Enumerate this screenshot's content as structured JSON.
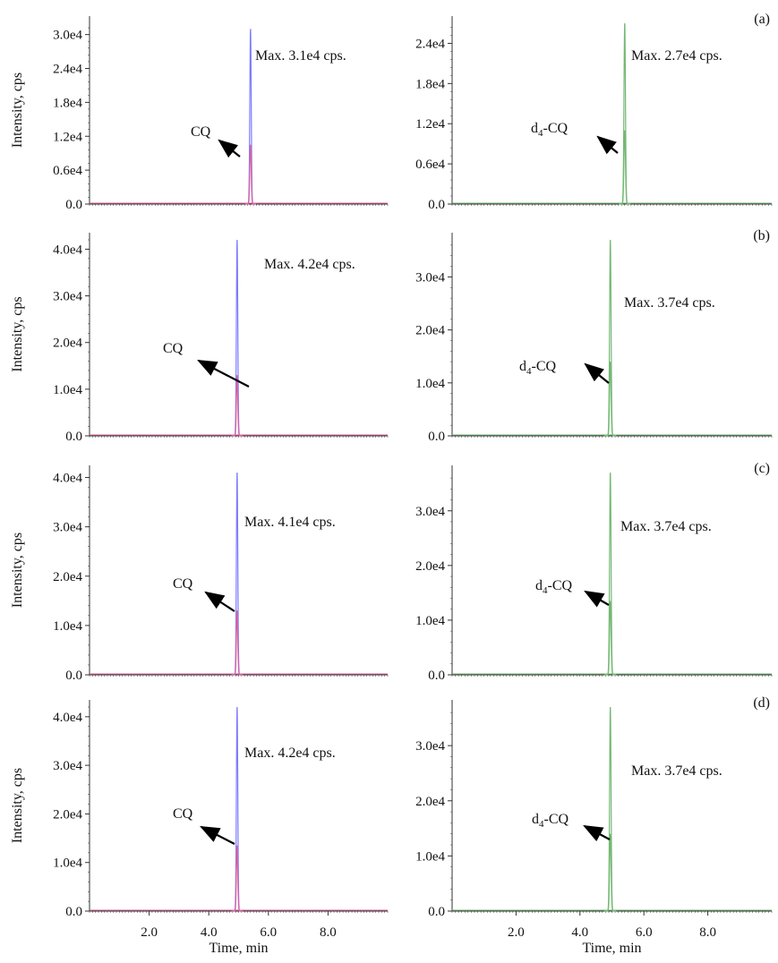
{
  "colors": {
    "blue": "#7b7bff",
    "pink": "#e0609a",
    "green": "#74b874",
    "axis": "#333333",
    "arrow": "#000000"
  },
  "chart_data": [
    {
      "type": "line",
      "panel_label": "",
      "ylabel": "Intensity, cps",
      "xlabel": "",
      "xlim": [
        0,
        10
      ],
      "ylim": [
        0,
        32000
      ],
      "yticks": [
        {
          "v": 0,
          "t": "0.0"
        },
        {
          "v": 6000,
          "t": "0.6e4"
        },
        {
          "v": 12000,
          "t": "1.2e4"
        },
        {
          "v": 18000,
          "t": "1.8e4"
        },
        {
          "v": 24000,
          "t": "2.4e4"
        },
        {
          "v": 30000,
          "t": "3.0e4"
        }
      ],
      "xticks": [],
      "series": [
        {
          "color": "blue",
          "peak_x": 5.4,
          "peak_y": 31000,
          "width": 0.06
        },
        {
          "color": "pink",
          "peak_x": 5.4,
          "peak_y": 10500,
          "width": 0.06
        }
      ],
      "annotation": {
        "text": "Max. 3.1e4 cps."
      },
      "compound": {
        "text": "CQ",
        "sub": ""
      }
    },
    {
      "type": "line",
      "panel_label": "(a)",
      "ylabel": "",
      "xlabel": "",
      "xlim": [
        0,
        10
      ],
      "ylim": [
        0,
        27000
      ],
      "yticks": [
        {
          "v": 0,
          "t": "0.0"
        },
        {
          "v": 6000,
          "t": "0.6e4"
        },
        {
          "v": 12000,
          "t": "1.2e4"
        },
        {
          "v": 18000,
          "t": "1.8e4"
        },
        {
          "v": 24000,
          "t": "2.4e4"
        }
      ],
      "xticks": [],
      "series": [
        {
          "color": "green",
          "peak_x": 5.4,
          "peak_y": 27000,
          "width": 0.06
        },
        {
          "color": "green",
          "peak_x": 5.4,
          "peak_y": 11000,
          "width": 0.06
        }
      ],
      "annotation": {
        "text": "Max. 2.7e4 cps."
      },
      "compound": {
        "text": "d",
        "sub": "4",
        "suffix": "-CQ"
      }
    },
    {
      "type": "line",
      "panel_label": "",
      "ylabel": "Intensity, cps",
      "xlabel": "",
      "xlim": [
        0,
        10
      ],
      "ylim": [
        0,
        42000
      ],
      "yticks": [
        {
          "v": 0,
          "t": "0.0"
        },
        {
          "v": 10000,
          "t": "1.0e4"
        },
        {
          "v": 20000,
          "t": "2.0e4"
        },
        {
          "v": 30000,
          "t": "3.0e4"
        },
        {
          "v": 40000,
          "t": "4.0e4"
        }
      ],
      "xticks": [],
      "series": [
        {
          "color": "blue",
          "peak_x": 4.95,
          "peak_y": 42000,
          "width": 0.06
        },
        {
          "color": "pink",
          "peak_x": 4.95,
          "peak_y": 13000,
          "width": 0.06
        }
      ],
      "annotation": {
        "text": "Max. 4.2e4 cps."
      },
      "compound": {
        "text": "CQ",
        "sub": ""
      }
    },
    {
      "type": "line",
      "panel_label": "(b)",
      "ylabel": "",
      "xlabel": "",
      "xlim": [
        0,
        10
      ],
      "ylim": [
        0,
        37000
      ],
      "yticks": [
        {
          "v": 0,
          "t": "0.0"
        },
        {
          "v": 10000,
          "t": "1.0e4"
        },
        {
          "v": 20000,
          "t": "2.0e4"
        },
        {
          "v": 30000,
          "t": "3.0e4"
        }
      ],
      "xticks": [],
      "series": [
        {
          "color": "green",
          "peak_x": 4.95,
          "peak_y": 37000,
          "width": 0.06
        },
        {
          "color": "green",
          "peak_x": 4.95,
          "peak_y": 14000,
          "width": 0.06
        }
      ],
      "annotation": {
        "text": "Max. 3.7e4 cps."
      },
      "compound": {
        "text": "d",
        "sub": "4",
        "suffix": "-CQ"
      }
    },
    {
      "type": "line",
      "panel_label": "",
      "ylabel": "Intensity, cps",
      "xlabel": "",
      "xlim": [
        0,
        10
      ],
      "ylim": [
        0,
        41000
      ],
      "yticks": [
        {
          "v": 0,
          "t": "0.0"
        },
        {
          "v": 10000,
          "t": "1.0e4"
        },
        {
          "v": 20000,
          "t": "2.0e4"
        },
        {
          "v": 30000,
          "t": "3.0e4"
        },
        {
          "v": 40000,
          "t": "4.0e4"
        }
      ],
      "xticks": [],
      "series": [
        {
          "color": "blue",
          "peak_x": 4.95,
          "peak_y": 41000,
          "width": 0.06
        },
        {
          "color": "pink",
          "peak_x": 4.95,
          "peak_y": 13000,
          "width": 0.06
        }
      ],
      "annotation": {
        "text": "Max. 4.1e4 cps."
      },
      "compound": {
        "text": "CQ",
        "sub": ""
      }
    },
    {
      "type": "line",
      "panel_label": "(c)",
      "ylabel": "",
      "xlabel": "",
      "xlim": [
        0,
        10
      ],
      "ylim": [
        0,
        37000
      ],
      "yticks": [
        {
          "v": 0,
          "t": "0.0"
        },
        {
          "v": 10000,
          "t": "1.0e4"
        },
        {
          "v": 20000,
          "t": "2.0e4"
        },
        {
          "v": 30000,
          "t": "3.0e4"
        }
      ],
      "xticks": [],
      "series": [
        {
          "color": "green",
          "peak_x": 4.95,
          "peak_y": 37000,
          "width": 0.06
        },
        {
          "color": "green",
          "peak_x": 4.95,
          "peak_y": 13500,
          "width": 0.06
        }
      ],
      "annotation": {
        "text": "Max. 3.7e4 cps."
      },
      "compound": {
        "text": "d",
        "sub": "4",
        "suffix": "-CQ"
      }
    },
    {
      "type": "line",
      "panel_label": "",
      "ylabel": "Intensity, cps",
      "xlabel": "Time, min",
      "xlim": [
        0,
        10
      ],
      "ylim": [
        0,
        42000
      ],
      "yticks": [
        {
          "v": 0,
          "t": "0.0"
        },
        {
          "v": 10000,
          "t": "1.0e4"
        },
        {
          "v": 20000,
          "t": "2.0e4"
        },
        {
          "v": 30000,
          "t": "3.0e4"
        },
        {
          "v": 40000,
          "t": "4.0e4"
        }
      ],
      "xticks": [
        {
          "v": 2,
          "t": "2.0"
        },
        {
          "v": 4,
          "t": "4.0"
        },
        {
          "v": 6,
          "t": "6.0"
        },
        {
          "v": 8,
          "t": "8.0"
        }
      ],
      "series": [
        {
          "color": "blue",
          "peak_x": 4.95,
          "peak_y": 42000,
          "width": 0.06
        },
        {
          "color": "pink",
          "peak_x": 4.95,
          "peak_y": 13500,
          "width": 0.06
        }
      ],
      "annotation": {
        "text": "Max. 4.2e4 cps."
      },
      "compound": {
        "text": "CQ",
        "sub": ""
      }
    },
    {
      "type": "line",
      "panel_label": "(d)",
      "ylabel": "",
      "xlabel": "Time, min",
      "xlim": [
        0,
        10
      ],
      "ylim": [
        0,
        37000
      ],
      "yticks": [
        {
          "v": 0,
          "t": "0.0"
        },
        {
          "v": 10000,
          "t": "1.0e4"
        },
        {
          "v": 20000,
          "t": "2.0e4"
        },
        {
          "v": 30000,
          "t": "3.0e4"
        }
      ],
      "xticks": [
        {
          "v": 2,
          "t": "2.0"
        },
        {
          "v": 4,
          "t": "4.0"
        },
        {
          "v": 6,
          "t": "6.0"
        },
        {
          "v": 8,
          "t": "8.0"
        }
      ],
      "series": [
        {
          "color": "green",
          "peak_x": 4.95,
          "peak_y": 37000,
          "width": 0.06
        },
        {
          "color": "green",
          "peak_x": 4.95,
          "peak_y": 14000,
          "width": 0.06
        }
      ],
      "annotation": {
        "text": "Max. 3.7e4 cps."
      },
      "compound": {
        "text": "d",
        "sub": "4",
        "suffix": "-CQ"
      }
    }
  ]
}
